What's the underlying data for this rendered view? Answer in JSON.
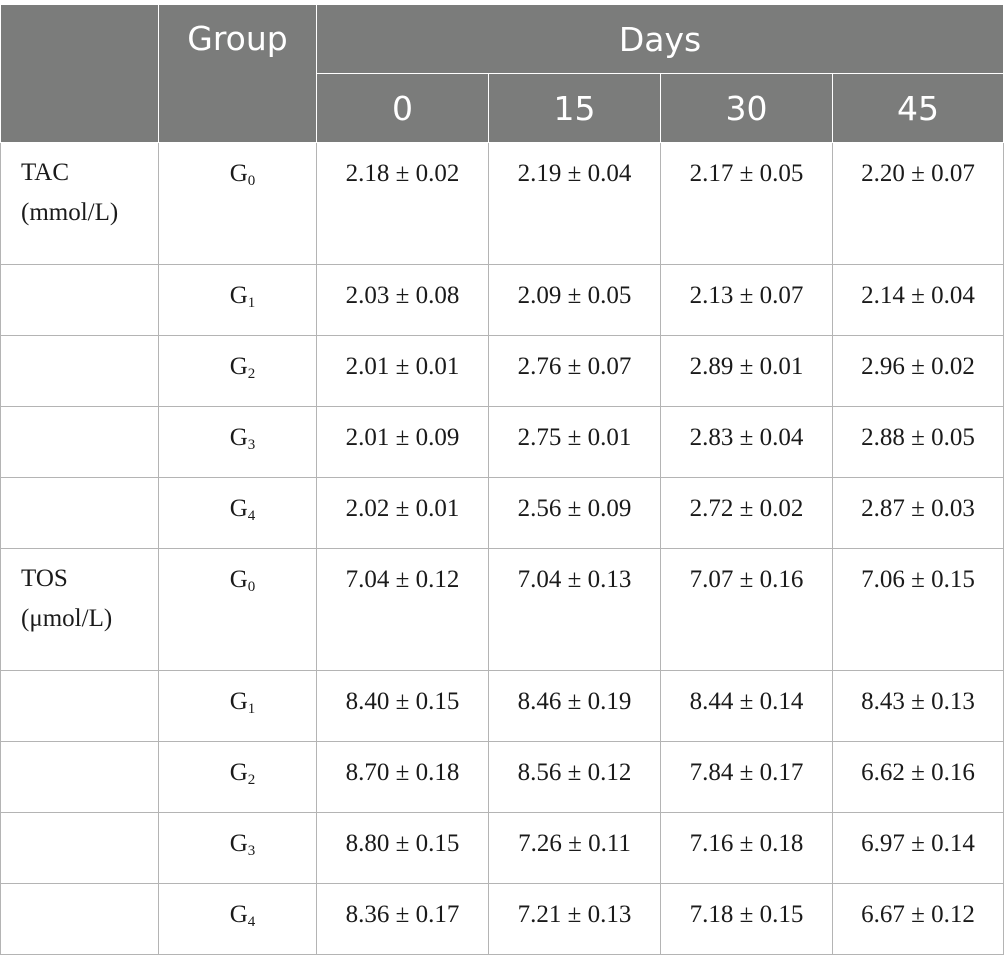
{
  "header": {
    "group_label": "Group",
    "days_label": "Days",
    "days": [
      "0",
      "15",
      "30",
      "45"
    ]
  },
  "sections": [
    {
      "param_name": "TAC",
      "param_unit": "(mmol/L)",
      "rows": [
        {
          "group": "G",
          "sub": "0",
          "values": [
            "2.18 ± 0.02",
            "2.19 ± 0.04",
            "2.17 ± 0.05",
            "2.20 ± 0.07"
          ]
        },
        {
          "group": "G",
          "sub": "1",
          "values": [
            "2.03 ± 0.08",
            "2.09 ± 0.05",
            "2.13 ± 0.07",
            "2.14 ± 0.04"
          ]
        },
        {
          "group": "G",
          "sub": "2",
          "values": [
            "2.01 ± 0.01",
            "2.76 ± 0.07",
            "2.89 ± 0.01",
            "2.96 ± 0.02"
          ]
        },
        {
          "group": "G",
          "sub": "3",
          "values": [
            "2.01 ± 0.09",
            "2.75 ± 0.01",
            "2.83 ± 0.04",
            "2.88 ± 0.05"
          ]
        },
        {
          "group": "G",
          "sub": "4",
          "values": [
            "2.02 ± 0.01",
            "2.56 ± 0.09",
            "2.72 ± 0.02",
            "2.87 ± 0.03"
          ]
        }
      ]
    },
    {
      "param_name": "TOS",
      "param_unit": "(μmol/L)",
      "rows": [
        {
          "group": "G",
          "sub": "0",
          "values": [
            "7.04 ± 0.12",
            "7.04 ± 0.13",
            "7.07 ± 0.16",
            "7.06 ± 0.15"
          ]
        },
        {
          "group": "G",
          "sub": "1",
          "values": [
            "8.40 ± 0.15",
            "8.46 ± 0.19",
            "8.44 ± 0.14",
            "8.43 ± 0.13"
          ]
        },
        {
          "group": "G",
          "sub": "2",
          "values": [
            "8.70 ± 0.18",
            "8.56 ± 0.12",
            "7.84 ± 0.17",
            "6.62 ± 0.16"
          ]
        },
        {
          "group": "G",
          "sub": "3",
          "values": [
            "8.80 ± 0.15",
            "7.26 ± 0.11",
            "7.16 ± 0.18",
            "6.97 ± 0.14"
          ]
        },
        {
          "group": "G",
          "sub": "4",
          "values": [
            "8.36 ± 0.17",
            "7.21 ± 0.13",
            "7.18 ± 0.15",
            "6.67 ± 0.12"
          ]
        }
      ]
    }
  ]
}
